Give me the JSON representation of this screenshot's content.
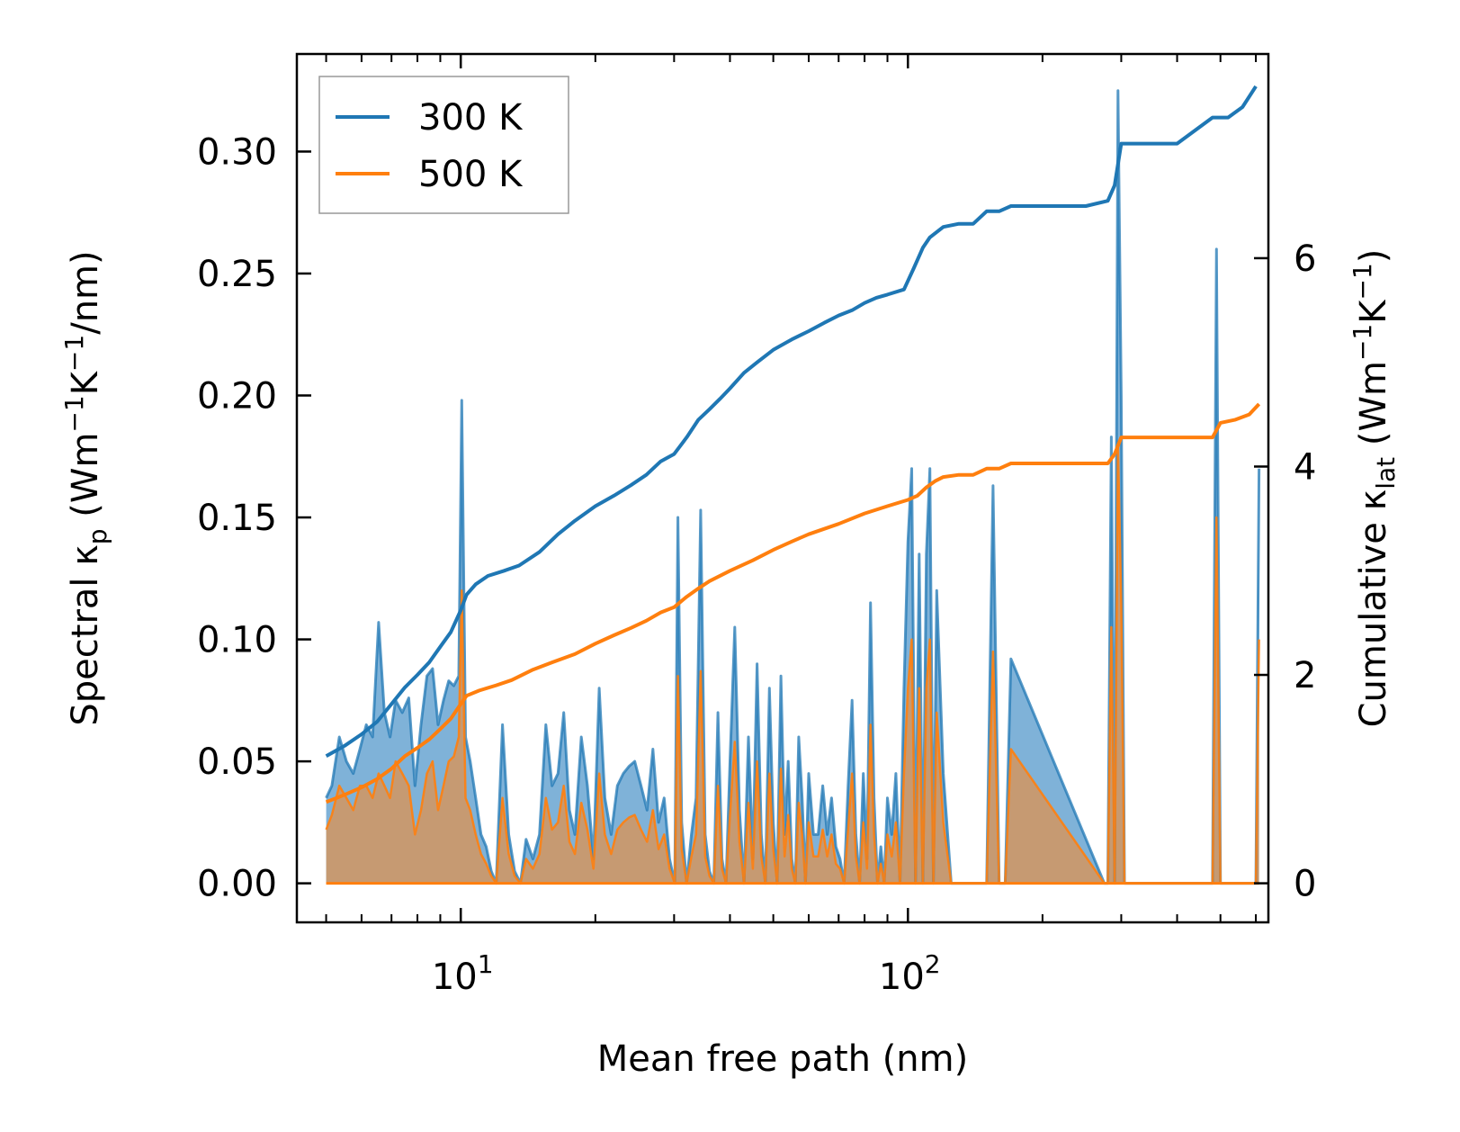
{
  "chart_data": {
    "type": "line",
    "title": "",
    "xlabel": "Mean free path (nm)",
    "x_scale": "log",
    "xlim": [
      4.3,
      640
    ],
    "x_major_ticks": [
      10,
      100
    ],
    "x_tick_labels": [
      {
        "base": "10",
        "exp": "1"
      },
      {
        "base": "10",
        "exp": "2"
      }
    ],
    "ylabel_left": {
      "prefix": "Spectral κ",
      "sub": "p",
      "mid1": " (Wm",
      "sup1": "−1",
      "mid2": "K",
      "sup2": "−1",
      "suffix": "/nm)"
    },
    "ylabel_right": {
      "prefix": "Cumulative κ",
      "sub": "lat",
      "mid1": " (Wm",
      "sup1": "−1",
      "mid2": "K",
      "sup2": "−1",
      "suffix": ")"
    },
    "ylim_left": [
      -0.016,
      0.34
    ],
    "yticks_left": [
      "0.00",
      "0.05",
      "0.10",
      "0.15",
      "0.20",
      "0.25",
      "0.30"
    ],
    "ylim_right": [
      -0.375,
      7.96
    ],
    "yticks_right": [
      "0",
      "2",
      "4",
      "6"
    ],
    "legend": {
      "position": "top-left",
      "entries": [
        "300 K",
        "500 K"
      ]
    },
    "colors": {
      "300 K": "#1f77b4",
      "500 K": "#ff7f0e",
      "fill_300": "#7fb2d8",
      "fill_500": "#c69a72"
    },
    "series": [
      {
        "name": "300 K",
        "axis": "right",
        "kind": "cumulative",
        "x": [
          5.0,
          5.5,
          6.0,
          6.5,
          7.0,
          7.5,
          8.0,
          8.5,
          9.0,
          9.5,
          10.0,
          10.3,
          10.8,
          11.5,
          12.5,
          13.5,
          15.0,
          16.5,
          18.0,
          20.0,
          22.0,
          24.0,
          26.0,
          28.0,
          30.0,
          31.0,
          32.0,
          34.0,
          36.0,
          38.0,
          40.0,
          43.0,
          46.0,
          50.0,
          55.0,
          60.0,
          65.0,
          70.0,
          75.0,
          80.0,
          85.0,
          90.0,
          98.0,
          103.0,
          108.0,
          112.0,
          120.0,
          130.0,
          140.0,
          150.0,
          160.0,
          170.0,
          200.0,
          250.0,
          280.0,
          290.0,
          300.0,
          320.0,
          400.0,
          480.0,
          520.0,
          560.0,
          600.0
        ],
        "y": [
          1.22,
          1.32,
          1.43,
          1.55,
          1.72,
          1.88,
          2.0,
          2.12,
          2.27,
          2.41,
          2.62,
          2.77,
          2.87,
          2.95,
          3.0,
          3.05,
          3.18,
          3.35,
          3.48,
          3.62,
          3.72,
          3.82,
          3.92,
          4.05,
          4.12,
          4.2,
          4.28,
          4.45,
          4.55,
          4.65,
          4.75,
          4.9,
          5.0,
          5.12,
          5.22,
          5.3,
          5.38,
          5.45,
          5.5,
          5.57,
          5.62,
          5.65,
          5.7,
          5.9,
          6.1,
          6.2,
          6.3,
          6.33,
          6.33,
          6.45,
          6.45,
          6.5,
          6.5,
          6.5,
          6.55,
          6.7,
          7.1,
          7.1,
          7.1,
          7.35,
          7.35,
          7.45,
          7.65
        ]
      },
      {
        "name": "500 K",
        "axis": "right",
        "kind": "cumulative",
        "x": [
          5.0,
          5.5,
          6.0,
          6.5,
          7.0,
          7.5,
          8.0,
          8.5,
          9.0,
          9.5,
          10.0,
          10.3,
          11.0,
          12.0,
          13.0,
          14.5,
          16.0,
          18.0,
          20.0,
          22.0,
          24.0,
          26.0,
          28.0,
          30.0,
          32.0,
          34.0,
          36.0,
          40.0,
          45.0,
          50.0,
          55.0,
          60.0,
          70.0,
          80.0,
          90.0,
          100.0,
          105.0,
          110.0,
          115.0,
          120.0,
          130.0,
          140.0,
          150.0,
          160.0,
          170.0,
          200.0,
          250.0,
          280.0,
          290.0,
          300.0,
          350.0,
          480.0,
          500.0,
          540.0,
          580.0,
          610.0
        ],
        "y": [
          0.78,
          0.85,
          0.92,
          1.0,
          1.1,
          1.22,
          1.3,
          1.38,
          1.48,
          1.58,
          1.72,
          1.8,
          1.85,
          1.9,
          1.95,
          2.05,
          2.12,
          2.2,
          2.3,
          2.38,
          2.45,
          2.52,
          2.6,
          2.65,
          2.75,
          2.83,
          2.9,
          3.0,
          3.1,
          3.2,
          3.28,
          3.35,
          3.45,
          3.55,
          3.62,
          3.68,
          3.72,
          3.8,
          3.86,
          3.9,
          3.92,
          3.92,
          3.98,
          3.98,
          4.03,
          4.03,
          4.03,
          4.03,
          4.12,
          4.28,
          4.28,
          4.28,
          4.42,
          4.45,
          4.5,
          4.6
        ]
      },
      {
        "name": "300 K spectral",
        "axis": "left",
        "kind": "spectral",
        "x": [
          5.0,
          5.15,
          5.35,
          5.55,
          5.75,
          5.95,
          6.15,
          6.35,
          6.55,
          6.75,
          6.95,
          7.15,
          7.4,
          7.65,
          7.9,
          8.15,
          8.4,
          8.65,
          8.9,
          9.15,
          9.4,
          9.65,
          9.9,
          10.05,
          10.25,
          10.5,
          10.8,
          11.1,
          11.4,
          11.7,
          12.0,
          12.4,
          12.8,
          13.2,
          13.6,
          14.0,
          14.5,
          15.0,
          15.5,
          16.0,
          16.5,
          17.0,
          17.5,
          18.0,
          18.6,
          19.2,
          19.8,
          20.4,
          21.0,
          21.7,
          22.4,
          23.1,
          23.8,
          24.5,
          25.3,
          26.1,
          26.9,
          27.7,
          28.5,
          29.3,
          30.1,
          30.6,
          31.2,
          32.0,
          32.8,
          33.6,
          34.4,
          35.2,
          36.0,
          36.8,
          37.6,
          38.4,
          39.2,
          40.0,
          41.0,
          42.0,
          43.0,
          44.0,
          45.0,
          46.0,
          47.0,
          48.0,
          49.0,
          50.0,
          51.0,
          52.0,
          53.0,
          54.0,
          55.0,
          56.0,
          57.0,
          58.0,
          59.0,
          60.0,
          61.5,
          63.0,
          64.5,
          66.0,
          67.5,
          69.0,
          70.5,
          72.0,
          73.5,
          75.0,
          76.5,
          78.0,
          79.5,
          81.0,
          82.5,
          84.0,
          85.5,
          87.0,
          88.5,
          90.0,
          92.0,
          94.0,
          96.0,
          98.0,
          100.0,
          102.0,
          104.0,
          106.0,
          108.0,
          110.0,
          112.0,
          114.0,
          116.0,
          120.0,
          125.0,
          130.0,
          135.0,
          140.0,
          145.0,
          150.0,
          155.0,
          160.0,
          165.0,
          170.0,
          275.0,
          280.0,
          285.0,
          290.0,
          295.0,
          300.0,
          305.0,
          310.0,
          315.0,
          470.0,
          480.0,
          490.0,
          500.0,
          510.0,
          520.0,
          540.0,
          560.0,
          580.0,
          600.0,
          610.0
        ],
        "y": [
          0.035,
          0.04,
          0.06,
          0.05,
          0.045,
          0.055,
          0.065,
          0.06,
          0.107,
          0.07,
          0.06,
          0.075,
          0.07,
          0.076,
          0.04,
          0.065,
          0.085,
          0.088,
          0.065,
          0.075,
          0.083,
          0.081,
          0.085,
          0.198,
          0.06,
          0.05,
          0.035,
          0.02,
          0.015,
          0.005,
          0.0,
          0.065,
          0.02,
          0.005,
          0.0,
          0.018,
          0.01,
          0.02,
          0.065,
          0.04,
          0.045,
          0.07,
          0.03,
          0.02,
          0.06,
          0.04,
          0.01,
          0.08,
          0.035,
          0.02,
          0.04,
          0.045,
          0.048,
          0.05,
          0.04,
          0.03,
          0.055,
          0.025,
          0.035,
          0.01,
          0.0,
          0.15,
          0.025,
          0.0,
          0.02,
          0.035,
          0.153,
          0.02,
          0.005,
          0.0,
          0.07,
          0.01,
          0.0,
          0.05,
          0.105,
          0.03,
          0.0,
          0.06,
          0.01,
          0.09,
          0.02,
          0.0,
          0.08,
          0.025,
          0.0,
          0.085,
          0.02,
          0.05,
          0.01,
          0.0,
          0.06,
          0.035,
          0.0,
          0.045,
          0.02,
          0.02,
          0.04,
          0.02,
          0.035,
          0.015,
          0.01,
          0.0,
          0.04,
          0.075,
          0.02,
          0.0,
          0.045,
          0.01,
          0.115,
          0.035,
          0.0,
          0.015,
          0.0,
          0.035,
          0.02,
          0.045,
          0.0,
          0.08,
          0.14,
          0.17,
          0.0,
          0.135,
          0.0,
          0.135,
          0.17,
          0.0,
          0.12,
          0.045,
          0.0,
          0.0,
          0.0,
          0.0,
          0.0,
          0.0,
          0.163,
          0.0,
          0.0,
          0.092,
          0.0,
          0.0,
          0.183,
          0.0,
          0.325,
          0.2,
          0.0,
          0.0,
          0.0,
          0.0,
          0.0,
          0.26,
          0.0,
          0.0,
          0.0,
          0.0,
          0.0,
          0.0,
          0.0,
          0.17
        ]
      },
      {
        "name": "500 K spectral",
        "axis": "left",
        "kind": "spectral",
        "x": [
          5.0,
          5.15,
          5.35,
          5.55,
          5.75,
          5.95,
          6.15,
          6.35,
          6.55,
          6.75,
          6.95,
          7.15,
          7.4,
          7.65,
          7.9,
          8.15,
          8.4,
          8.65,
          8.9,
          9.15,
          9.4,
          9.65,
          9.9,
          10.05,
          10.25,
          10.5,
          10.8,
          11.1,
          11.4,
          11.7,
          12.0,
          12.4,
          12.8,
          13.2,
          13.6,
          14.0,
          14.5,
          15.0,
          15.5,
          16.0,
          16.5,
          17.0,
          17.5,
          18.0,
          18.6,
          19.2,
          19.8,
          20.4,
          21.0,
          21.7,
          22.4,
          23.1,
          23.8,
          24.5,
          25.3,
          26.1,
          26.9,
          27.7,
          28.5,
          29.3,
          30.1,
          30.6,
          31.2,
          32.0,
          32.8,
          33.6,
          34.4,
          35.2,
          36.0,
          36.8,
          37.6,
          38.4,
          39.2,
          40.0,
          41.0,
          42.0,
          43.0,
          44.0,
          45.0,
          46.0,
          47.0,
          48.0,
          49.0,
          50.0,
          51.0,
          52.0,
          53.0,
          54.0,
          55.0,
          56.0,
          57.0,
          58.0,
          59.0,
          60.0,
          61.5,
          63.0,
          64.5,
          66.0,
          67.5,
          69.0,
          70.5,
          72.0,
          73.5,
          75.0,
          76.5,
          78.0,
          79.5,
          81.0,
          82.5,
          84.0,
          85.5,
          87.0,
          88.5,
          90.0,
          92.0,
          94.0,
          96.0,
          98.0,
          100.0,
          102.0,
          104.0,
          106.0,
          108.0,
          110.0,
          112.0,
          114.0,
          116.0,
          120.0,
          125.0,
          130.0,
          135.0,
          140.0,
          145.0,
          150.0,
          155.0,
          160.0,
          165.0,
          170.0,
          275.0,
          280.0,
          285.0,
          290.0,
          295.0,
          300.0,
          305.0,
          310.0,
          315.0,
          470.0,
          480.0,
          490.0,
          500.0,
          510.0,
          520.0,
          540.0,
          560.0,
          580.0,
          600.0,
          610.0
        ],
        "y": [
          0.022,
          0.028,
          0.04,
          0.035,
          0.03,
          0.04,
          0.04,
          0.035,
          0.045,
          0.04,
          0.035,
          0.05,
          0.045,
          0.04,
          0.02,
          0.03,
          0.045,
          0.05,
          0.03,
          0.04,
          0.05,
          0.052,
          0.06,
          0.12,
          0.035,
          0.03,
          0.02,
          0.012,
          0.008,
          0.003,
          0.0,
          0.035,
          0.012,
          0.003,
          0.0,
          0.01,
          0.006,
          0.012,
          0.035,
          0.022,
          0.025,
          0.04,
          0.017,
          0.012,
          0.033,
          0.022,
          0.006,
          0.045,
          0.02,
          0.012,
          0.022,
          0.025,
          0.027,
          0.028,
          0.022,
          0.017,
          0.03,
          0.014,
          0.02,
          0.006,
          0.0,
          0.085,
          0.014,
          0.0,
          0.011,
          0.02,
          0.087,
          0.011,
          0.003,
          0.0,
          0.04,
          0.006,
          0.0,
          0.028,
          0.058,
          0.017,
          0.0,
          0.033,
          0.006,
          0.05,
          0.011,
          0.0,
          0.045,
          0.014,
          0.0,
          0.047,
          0.011,
          0.028,
          0.006,
          0.0,
          0.033,
          0.02,
          0.0,
          0.025,
          0.011,
          0.011,
          0.022,
          0.011,
          0.02,
          0.008,
          0.006,
          0.0,
          0.022,
          0.045,
          0.011,
          0.0,
          0.025,
          0.006,
          0.065,
          0.02,
          0.0,
          0.008,
          0.0,
          0.02,
          0.011,
          0.025,
          0.0,
          0.045,
          0.08,
          0.1,
          0.0,
          0.08,
          0.0,
          0.08,
          0.1,
          0.0,
          0.07,
          0.025,
          0.0,
          0.0,
          0.0,
          0.0,
          0.0,
          0.0,
          0.095,
          0.0,
          0.0,
          0.055,
          0.0,
          0.0,
          0.105,
          0.0,
          0.18,
          0.115,
          0.0,
          0.0,
          0.0,
          0.0,
          0.0,
          0.15,
          0.0,
          0.0,
          0.0,
          0.0,
          0.0,
          0.0,
          0.0,
          0.1
        ]
      }
    ]
  }
}
